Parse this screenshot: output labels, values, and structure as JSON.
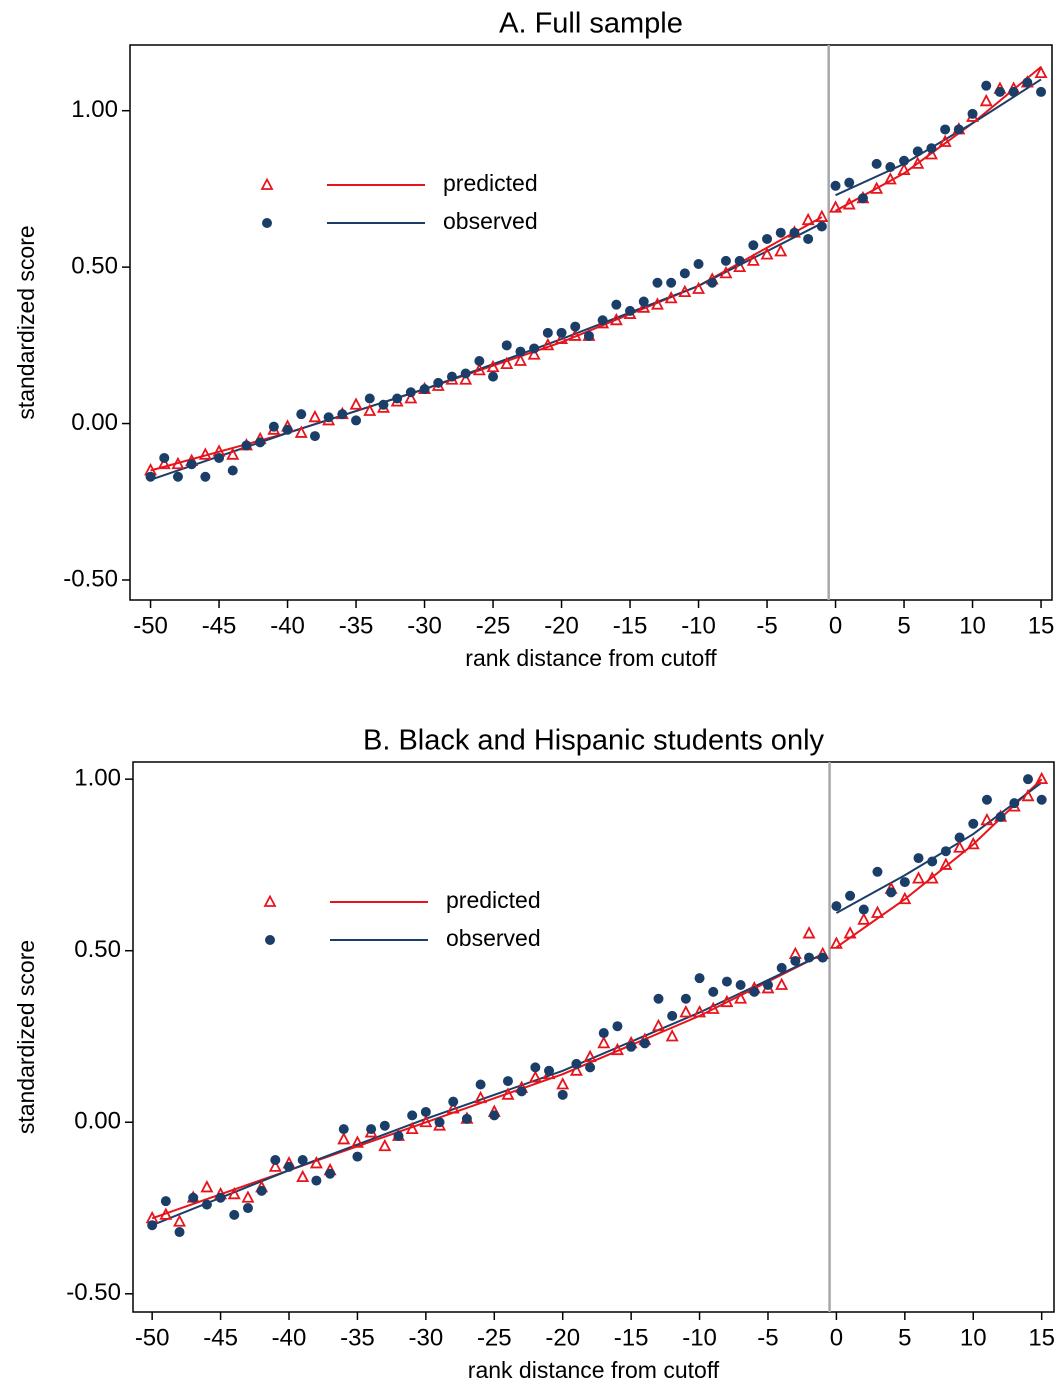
{
  "chart_data": [
    {
      "type": "scatter",
      "title": "A. Full sample",
      "xlabel": "rank distance from cutoff",
      "ylabel": "standardized score",
      "xlim": [
        -51.5,
        15.8
      ],
      "ylim": [
        -0.564,
        1.21
      ],
      "xticks": [
        -50,
        -45,
        -40,
        -35,
        -30,
        -25,
        -20,
        -15,
        -10,
        -5,
        0,
        5,
        10,
        15
      ],
      "yticks": [
        {
          "value": -0.5,
          "label": "-0.50"
        },
        {
          "value": 0,
          "label": "0.00"
        },
        {
          "value": 0.5,
          "label": "0.50"
        },
        {
          "value": 1,
          "label": "1.00"
        }
      ],
      "cutoff_x": -0.5,
      "legend": "upper left",
      "x": [
        -50,
        -49,
        -48,
        -47,
        -46,
        -45,
        -44,
        -43,
        -42,
        -41,
        -40,
        -39,
        -38,
        -37,
        -36,
        -35,
        -34,
        -33,
        -32,
        -31,
        -30,
        -29,
        -28,
        -27,
        -26,
        -25,
        -24,
        -23,
        -22,
        -21,
        -20,
        -19,
        -18,
        -17,
        -16,
        -15,
        -14,
        -13,
        -12,
        -11,
        -10,
        -9,
        -8,
        -7,
        -6,
        -5,
        -4,
        -3,
        -2,
        -1,
        0,
        1,
        2,
        3,
        4,
        5,
        6,
        7,
        8,
        9,
        10,
        11,
        12,
        13,
        14,
        15
      ],
      "series": [
        {
          "name": "predicted",
          "color": "#e8141b",
          "marker": "triangle",
          "values": [
            -0.15,
            -0.13,
            -0.13,
            -0.12,
            -0.1,
            -0.09,
            -0.1,
            -0.07,
            -0.05,
            -0.02,
            -0.01,
            -0.03,
            0.02,
            0.01,
            0.03,
            0.06,
            0.04,
            0.05,
            0.07,
            0.08,
            0.11,
            0.12,
            0.14,
            0.14,
            0.17,
            0.18,
            0.19,
            0.2,
            0.22,
            0.25,
            0.27,
            0.28,
            0.28,
            0.32,
            0.33,
            0.35,
            0.37,
            0.38,
            0.4,
            0.42,
            0.43,
            0.46,
            0.48,
            0.5,
            0.52,
            0.54,
            0.55,
            0.61,
            0.65,
            0.66,
            0.69,
            0.7,
            0.72,
            0.75,
            0.78,
            0.81,
            0.83,
            0.86,
            0.9,
            0.94,
            0.98,
            1.03,
            1.07,
            1.07,
            1.09,
            1.12
          ],
          "fit_x": [
            -50,
            -40,
            -30,
            -20,
            -10,
            -1,
            null,
            0,
            5,
            10,
            15
          ],
          "fit": [
            -0.15,
            -0.03,
            0.11,
            0.26,
            0.44,
            0.66,
            null,
            0.68,
            0.8,
            0.96,
            1.14
          ]
        },
        {
          "name": "observed",
          "color": "#1a3e68",
          "marker": "dot",
          "values": [
            -0.17,
            -0.11,
            -0.17,
            -0.13,
            -0.17,
            -0.11,
            -0.15,
            -0.07,
            -0.06,
            -0.01,
            -0.02,
            0.03,
            -0.04,
            0.02,
            0.03,
            0.01,
            0.08,
            0.06,
            0.08,
            0.1,
            0.11,
            0.13,
            0.15,
            0.16,
            0.2,
            0.15,
            0.25,
            0.23,
            0.24,
            0.29,
            0.29,
            0.31,
            0.28,
            0.33,
            0.38,
            0.36,
            0.39,
            0.45,
            0.45,
            0.48,
            0.51,
            0.45,
            0.52,
            0.52,
            0.57,
            0.59,
            0.61,
            0.61,
            0.59,
            0.63,
            0.76,
            0.77,
            0.72,
            0.83,
            0.82,
            0.84,
            0.87,
            0.88,
            0.94,
            0.94,
            0.99,
            1.08,
            1.06,
            1.06,
            1.09,
            1.06
          ],
          "fit_x": [
            -50,
            -40,
            -30,
            -20,
            -10,
            -1,
            null,
            0,
            5,
            10,
            15
          ],
          "fit": [
            -0.18,
            -0.03,
            0.11,
            0.27,
            0.44,
            0.64,
            null,
            0.73,
            0.83,
            0.96,
            1.1
          ]
        }
      ]
    },
    {
      "type": "scatter",
      "title": "B. Black and Hispanic students only",
      "xlabel": "rank distance from cutoff",
      "ylabel": "standardized score",
      "xlim": [
        -51.4,
        15.9
      ],
      "ylim": [
        -0.553,
        1.05
      ],
      "xticks": [
        -50,
        -45,
        -40,
        -35,
        -30,
        -25,
        -20,
        -15,
        -10,
        -5,
        0,
        5,
        10,
        15
      ],
      "yticks": [
        {
          "value": -0.5,
          "label": "-0.50"
        },
        {
          "value": 0,
          "label": "0.00"
        },
        {
          "value": 0.5,
          "label": "0.50"
        },
        {
          "value": 1,
          "label": "1.00"
        }
      ],
      "cutoff_x": -0.5,
      "legend": "upper left",
      "x": [
        -50,
        -49,
        -48,
        -47,
        -46,
        -45,
        -44,
        -43,
        -42,
        -41,
        -40,
        -39,
        -38,
        -37,
        -36,
        -35,
        -34,
        -33,
        -32,
        -31,
        -30,
        -29,
        -28,
        -27,
        -26,
        -25,
        -24,
        -23,
        -22,
        -21,
        -20,
        -19,
        -18,
        -17,
        -16,
        -15,
        -14,
        -13,
        -12,
        -11,
        -10,
        -9,
        -8,
        -7,
        -6,
        -5,
        -4,
        -3,
        -2,
        -1,
        0,
        1,
        2,
        3,
        4,
        5,
        6,
        7,
        8,
        9,
        10,
        11,
        12,
        13,
        14,
        15
      ],
      "series": [
        {
          "name": "predicted",
          "color": "#e8141b",
          "marker": "triangle",
          "values": [
            -0.28,
            -0.27,
            -0.29,
            -0.22,
            -0.19,
            -0.21,
            -0.21,
            -0.22,
            -0.19,
            -0.13,
            -0.12,
            -0.16,
            -0.12,
            -0.14,
            -0.05,
            -0.06,
            -0.03,
            -0.07,
            -0.04,
            -0.02,
            0.0,
            -0.01,
            0.04,
            0.01,
            0.07,
            0.03,
            0.08,
            0.1,
            0.13,
            0.14,
            0.11,
            0.15,
            0.19,
            0.23,
            0.21,
            0.23,
            0.24,
            0.28,
            0.25,
            0.32,
            0.32,
            0.33,
            0.35,
            0.36,
            0.39,
            0.39,
            0.4,
            0.49,
            0.55,
            0.49,
            0.52,
            0.55,
            0.59,
            0.61,
            0.68,
            0.65,
            0.71,
            0.71,
            0.75,
            0.8,
            0.81,
            0.88,
            0.89,
            0.92,
            0.95,
            1.0
          ],
          "fit_x": [
            -50,
            -40,
            -30,
            -20,
            -10,
            -1,
            null,
            0,
            5,
            10,
            15
          ],
          "fit": [
            -0.28,
            -0.14,
            0.0,
            0.14,
            0.31,
            0.49,
            null,
            0.51,
            0.65,
            0.81,
            1.0
          ]
        },
        {
          "name": "observed",
          "color": "#1a3e68",
          "marker": "dot",
          "values": [
            -0.3,
            -0.23,
            -0.32,
            -0.22,
            -0.24,
            -0.22,
            -0.27,
            -0.25,
            -0.2,
            -0.11,
            -0.13,
            -0.11,
            -0.17,
            -0.15,
            -0.02,
            -0.1,
            -0.02,
            -0.01,
            -0.04,
            0.02,
            0.03,
            0.0,
            0.06,
            0.01,
            0.11,
            0.02,
            0.12,
            0.09,
            0.16,
            0.15,
            0.08,
            0.17,
            0.16,
            0.26,
            0.28,
            0.22,
            0.23,
            0.36,
            0.31,
            0.36,
            0.42,
            0.38,
            0.41,
            0.4,
            0.38,
            0.4,
            0.45,
            0.47,
            0.48,
            0.48,
            0.63,
            0.66,
            0.62,
            0.73,
            0.67,
            0.7,
            0.77,
            0.76,
            0.79,
            0.83,
            0.87,
            0.94,
            0.89,
            0.93,
            1.0,
            0.94
          ],
          "fit_x": [
            -50,
            -40,
            -30,
            -20,
            -10,
            -1,
            null,
            0,
            5,
            10,
            15
          ],
          "fit": [
            -0.3,
            -0.14,
            0.01,
            0.15,
            0.32,
            0.49,
            null,
            0.61,
            0.72,
            0.84,
            0.99
          ]
        }
      ]
    }
  ]
}
